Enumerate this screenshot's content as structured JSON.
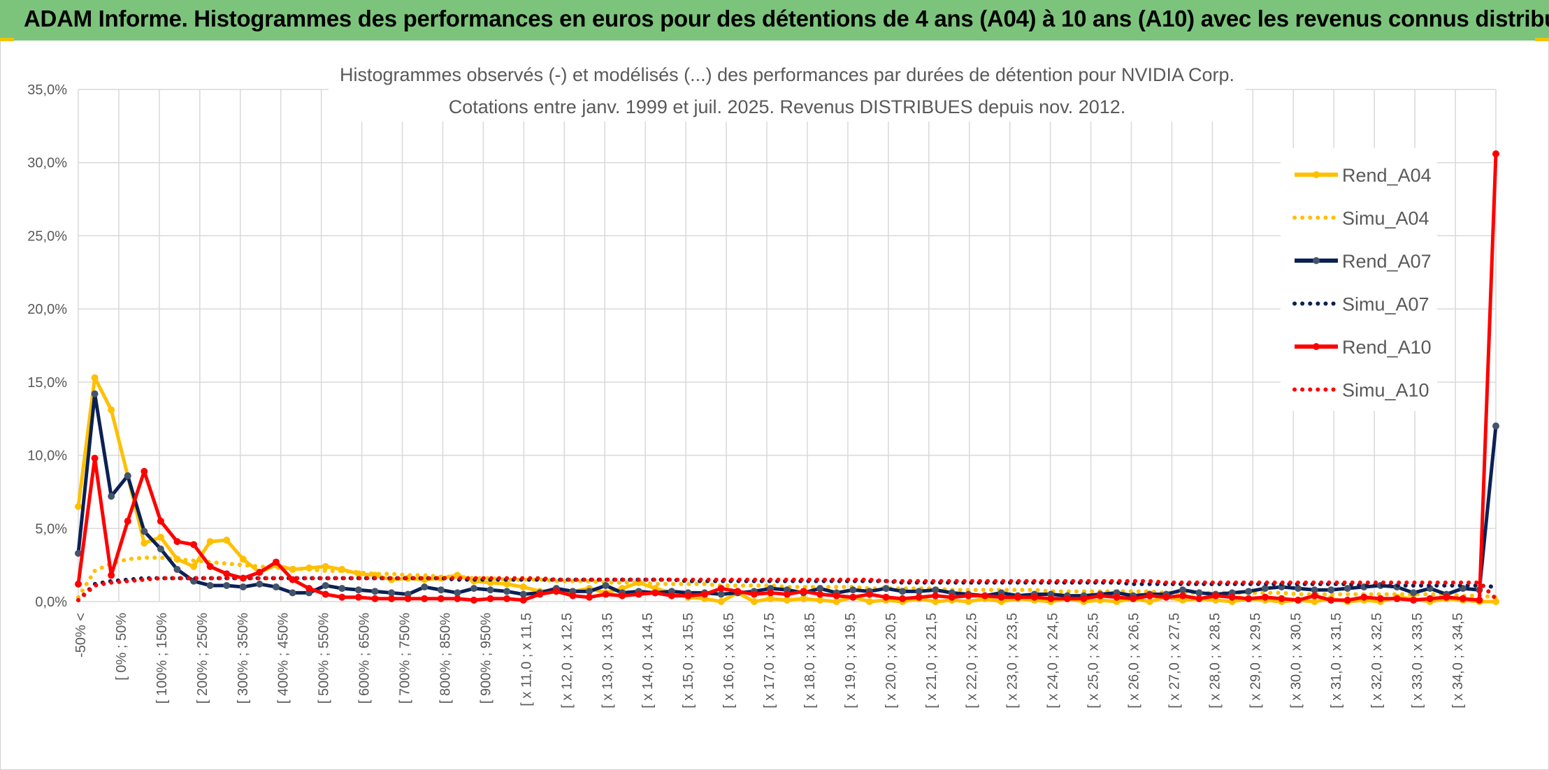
{
  "header": {
    "title": "ADAM Informe. Histogrammes des performances en euros pour des détentions de 4 ans (A04) à 10 ans (A10) avec les revenus connus distribués"
  },
  "colors": {
    "header_bg": "#7cc47c",
    "A04": "#ffc000",
    "A07": "#0b2155",
    "A07_marker": "#44546a",
    "A10": "#ff0000"
  },
  "chart_data": {
    "type": "line",
    "title": "Histogrammes observés (-) et modélisés (...) des performances par durées de détention pour NVIDIA Corp.",
    "subtitle": "Cotations entre janv. 1999 et juil. 2025. Revenus DISTRIBUES depuis nov. 2012.",
    "ylim": [
      0,
      35
    ],
    "y_ticks": [
      "0,0%",
      "5,0%",
      "10,0%",
      "15,0%",
      "20,0%",
      "25,0%",
      "30,0%",
      "35,0%"
    ],
    "x_tick_labels": [
      "-50% <",
      "[ 0% ; 50%",
      "[ 100% ; 150%",
      "[ 200% ; 250%",
      "[ 300% ; 350%",
      "[ 400% ; 450%",
      "[ 500% ; 550%",
      "[ 600% ; 650%",
      "[ 700% ; 750%",
      "[ 800% ; 850%",
      "[ 900% ; 950%",
      "[ x 11,0 ; x 11,5",
      "[ x 12,0 ; x 12,5",
      "[ x 13,0 ; x 13,5",
      "[ x 14,0 ; x 14,5",
      "[ x 15,0 ; x 15,5",
      "[ x 16,0 ; x 16,5",
      "[ x 17,0 ; x 17,5",
      "[ x 18,0 ; x 18,5",
      "[ x 19,0 ; x 19,5",
      "[ x 20,0 ; x 20,5",
      "[ x 21,0 ; x 21,5",
      "[ x 22,0 ; x 22,5",
      "[ x 23,0 ; x 23,5",
      "[ x 24,0 ; x 24,5",
      "[ x 25,0 ; x 25,5",
      "[ x 26,0 ; x 26,5",
      "[ x 27,0 ; x 27,5",
      "[ x 28,0 ; x 28,5",
      "[ x 29,0 ; x 29,5",
      "[ x 30,0 ; x 30,5",
      "[ x 31,0 ; x 31,5",
      "[ x 32,0 ; x 32,5",
      "[ x 33,0 ; x 33,5",
      "[ x 34,0 ; x 34,5"
    ],
    "grid": true,
    "legend_position": "right",
    "series": [
      {
        "name": "Rend_A04",
        "style": "solid",
        "color": "#ffc000",
        "values": [
          6.5,
          15.3,
          13.1,
          8.6,
          4.0,
          4.4,
          2.9,
          2.4,
          4.1,
          4.2,
          2.9,
          2.0,
          2.5,
          2.2,
          2.3,
          2.4,
          2.2,
          1.9,
          1.8,
          1.5,
          1.6,
          1.5,
          1.6,
          1.8,
          1.4,
          1.3,
          1.2,
          1.0,
          0.7,
          0.8,
          0.7,
          0.9,
          0.6,
          0.9,
          1.3,
          0.9,
          0.6,
          0.3,
          0.2,
          0.0,
          0.6,
          0.0,
          0.2,
          0.1,
          0.2,
          0.1,
          0.0,
          0.3,
          0.0,
          0.1,
          0.0,
          0.2,
          0.0,
          0.1,
          0.0,
          0.2,
          0.0,
          0.2,
          0.1,
          0.0,
          0.2,
          0.0,
          0.1,
          0.0,
          0.2,
          0.0,
          0.3,
          0.1,
          0.2,
          0.1,
          0.0,
          0.2,
          0.1,
          0.0,
          0.1,
          0.0,
          0.2,
          0.0,
          0.1,
          0.0,
          0.3,
          0.2,
          0.0,
          0.2,
          0.1,
          0.0,
          0.0
        ]
      },
      {
        "name": "Simu_A04",
        "style": "dotted",
        "color": "#ffc000",
        "values": [
          0.3,
          2.1,
          2.6,
          2.9,
          3.0,
          3.0,
          2.9,
          2.8,
          2.7,
          2.6,
          2.5,
          2.4,
          2.3,
          2.3,
          2.2,
          2.1,
          2.1,
          2.0,
          1.9,
          1.9,
          1.8,
          1.8,
          1.7,
          1.7,
          1.6,
          1.6,
          1.5,
          1.5,
          1.5,
          1.4,
          1.4,
          1.4,
          1.3,
          1.3,
          1.3,
          1.2,
          1.2,
          1.2,
          1.2,
          1.1,
          1.1,
          1.1,
          1.1,
          1.0,
          1.0,
          1.0,
          1.0,
          1.0,
          0.9,
          0.9,
          0.9,
          0.9,
          0.9,
          0.8,
          0.8,
          0.8,
          0.8,
          0.8,
          0.8,
          0.7,
          0.7,
          0.7,
          0.7,
          0.7,
          0.7,
          0.7,
          0.6,
          0.6,
          0.6,
          0.6,
          0.6,
          0.6,
          0.6,
          0.6,
          0.5,
          0.5,
          0.5,
          0.5,
          0.5,
          0.5,
          0.5,
          0.5,
          0.5,
          0.5,
          0.4,
          0.4,
          0.3
        ]
      },
      {
        "name": "Rend_A07",
        "style": "solid",
        "color": "#0b2155",
        "marker": "#44546a",
        "values": [
          3.3,
          14.2,
          7.2,
          8.6,
          4.8,
          3.6,
          2.2,
          1.4,
          1.1,
          1.1,
          1.0,
          1.2,
          1.0,
          0.6,
          0.6,
          1.1,
          0.9,
          0.8,
          0.7,
          0.6,
          0.5,
          1.0,
          0.8,
          0.6,
          0.9,
          0.8,
          0.7,
          0.5,
          0.6,
          0.9,
          0.7,
          0.7,
          1.1,
          0.6,
          0.7,
          0.6,
          0.7,
          0.6,
          0.6,
          0.5,
          0.6,
          0.7,
          0.9,
          0.8,
          0.6,
          0.9,
          0.6,
          0.8,
          0.7,
          0.9,
          0.7,
          0.7,
          0.8,
          0.6,
          0.5,
          0.4,
          0.6,
          0.4,
          0.5,
          0.5,
          0.4,
          0.4,
          0.5,
          0.6,
          0.4,
          0.5,
          0.5,
          0.8,
          0.6,
          0.5,
          0.6,
          0.7,
          0.9,
          1.0,
          0.9,
          0.8,
          0.8,
          0.9,
          1.0,
          1.1,
          1.0,
          0.6,
          0.9,
          0.5,
          0.9,
          0.8,
          12.0
        ]
      },
      {
        "name": "Simu_A07",
        "style": "dotted",
        "color": "#0b2155",
        "values": [
          0.1,
          1.2,
          1.4,
          1.5,
          1.6,
          1.6,
          1.6,
          1.6,
          1.6,
          1.6,
          1.6,
          1.6,
          1.6,
          1.6,
          1.6,
          1.6,
          1.6,
          1.6,
          1.6,
          1.6,
          1.6,
          1.6,
          1.6,
          1.5,
          1.5,
          1.5,
          1.5,
          1.5,
          1.5,
          1.5,
          1.5,
          1.5,
          1.5,
          1.5,
          1.5,
          1.5,
          1.5,
          1.4,
          1.4,
          1.4,
          1.4,
          1.4,
          1.4,
          1.4,
          1.4,
          1.4,
          1.4,
          1.4,
          1.4,
          1.4,
          1.3,
          1.3,
          1.3,
          1.3,
          1.3,
          1.3,
          1.3,
          1.3,
          1.3,
          1.3,
          1.3,
          1.3,
          1.3,
          1.3,
          1.2,
          1.2,
          1.2,
          1.2,
          1.2,
          1.2,
          1.2,
          1.2,
          1.2,
          1.2,
          1.2,
          1.2,
          1.2,
          1.2,
          1.1,
          1.1,
          1.1,
          1.1,
          1.1,
          1.1,
          1.1,
          1.1,
          1.0
        ]
      },
      {
        "name": "Rend_A10",
        "style": "solid",
        "color": "#ff0000",
        "values": [
          1.2,
          9.8,
          1.8,
          5.5,
          8.9,
          5.5,
          4.1,
          3.9,
          2.4,
          1.9,
          1.6,
          2.0,
          2.7,
          1.5,
          0.9,
          0.5,
          0.3,
          0.3,
          0.2,
          0.2,
          0.2,
          0.2,
          0.2,
          0.2,
          0.1,
          0.2,
          0.2,
          0.1,
          0.5,
          0.7,
          0.4,
          0.3,
          0.5,
          0.4,
          0.5,
          0.6,
          0.4,
          0.4,
          0.5,
          0.9,
          0.7,
          0.5,
          0.6,
          0.5,
          0.7,
          0.5,
          0.4,
          0.3,
          0.5,
          0.3,
          0.2,
          0.3,
          0.4,
          0.3,
          0.4,
          0.4,
          0.3,
          0.3,
          0.3,
          0.2,
          0.2,
          0.2,
          0.4,
          0.3,
          0.2,
          0.4,
          0.3,
          0.4,
          0.2,
          0.4,
          0.3,
          0.2,
          0.3,
          0.2,
          0.1,
          0.4,
          0.1,
          0.1,
          0.3,
          0.2,
          0.2,
          0.1,
          0.2,
          0.3,
          0.2,
          0.1,
          30.6
        ]
      },
      {
        "name": "Simu_A10",
        "style": "dotted",
        "color": "#ff0000",
        "values": [
          0.1,
          1.1,
          1.3,
          1.4,
          1.5,
          1.6,
          1.6,
          1.6,
          1.6,
          1.6,
          1.6,
          1.6,
          1.6,
          1.6,
          1.6,
          1.6,
          1.6,
          1.6,
          1.6,
          1.6,
          1.6,
          1.6,
          1.6,
          1.6,
          1.6,
          1.6,
          1.6,
          1.6,
          1.6,
          1.5,
          1.5,
          1.5,
          1.5,
          1.5,
          1.5,
          1.5,
          1.5,
          1.5,
          1.5,
          1.5,
          1.5,
          1.5,
          1.5,
          1.5,
          1.5,
          1.5,
          1.5,
          1.5,
          1.5,
          1.4,
          1.4,
          1.4,
          1.4,
          1.4,
          1.4,
          1.4,
          1.4,
          1.4,
          1.4,
          1.4,
          1.4,
          1.4,
          1.4,
          1.4,
          1.4,
          1.4,
          1.3,
          1.3,
          1.3,
          1.3,
          1.3,
          1.3,
          1.3,
          1.3,
          1.3,
          1.3,
          1.3,
          1.3,
          1.3,
          1.3,
          1.3,
          1.3,
          1.3,
          1.3,
          1.3,
          1.3,
          0.2
        ]
      }
    ]
  }
}
